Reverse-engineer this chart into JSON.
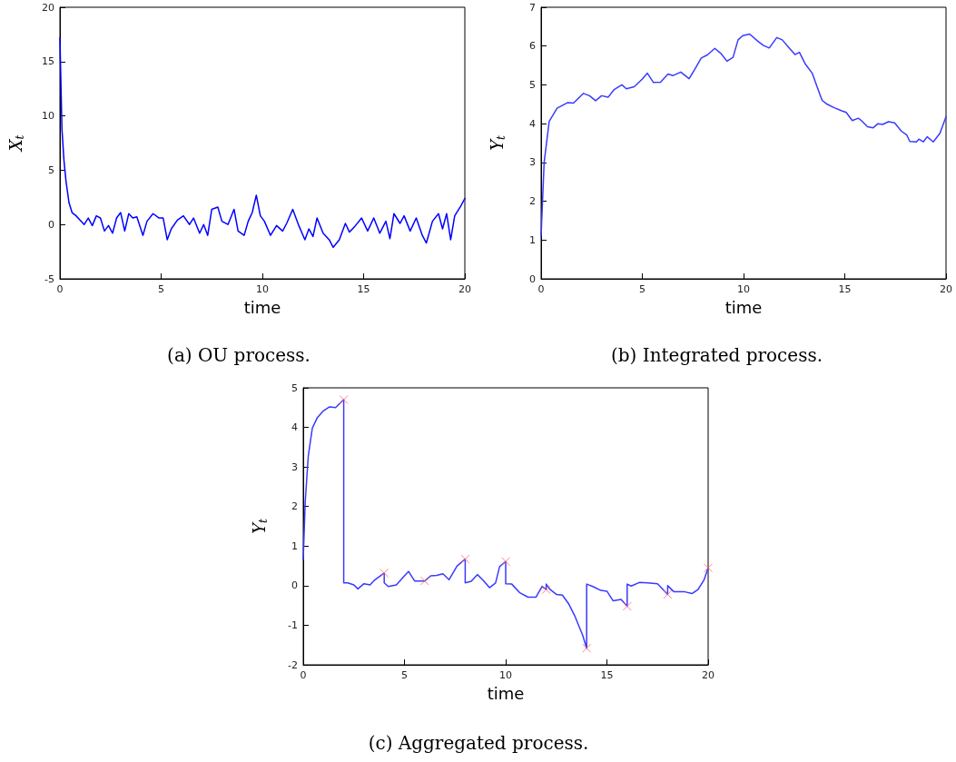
{
  "chart_data": [
    {
      "type": "line",
      "xlabel": "time",
      "ylabel": "X$_{t}$",
      "annotations": [
        "(a) OU process."
      ],
      "marker": "none",
      "xlim": [
        0,
        20
      ],
      "xticks": [
        0,
        5,
        10,
        15,
        20
      ],
      "ylim": [
        -5,
        20
      ],
      "yticks": [
        -5,
        0,
        5,
        10,
        15,
        20
      ],
      "grid": false,
      "series": [
        {
          "color": "#0000ff",
          "x": [
            0,
            0.1,
            0.2,
            0.3,
            0.45,
            0.6,
            0.8,
            1.0,
            1.2,
            1.4,
            1.6,
            1.8,
            2.0,
            2.2,
            2.4,
            2.6,
            2.8,
            3.0,
            3.2,
            3.4,
            3.6,
            3.8,
            4.1,
            4.3,
            4.6,
            4.9,
            5.1,
            5.3,
            5.5,
            5.8,
            6.1,
            6.4,
            6.6,
            6.9,
            7.1,
            7.3,
            7.5,
            7.8,
            8.0,
            8.3,
            8.6,
            8.8,
            9.1,
            9.3,
            9.5,
            9.7,
            9.9,
            10.1,
            10.4,
            10.7,
            11.0,
            11.2,
            11.5,
            11.8,
            12.1,
            12.3,
            12.5,
            12.7,
            13.0,
            13.3,
            13.5,
            13.8,
            14.1,
            14.3,
            14.6,
            14.9,
            15.2,
            15.5,
            15.8,
            16.1,
            16.3,
            16.5,
            16.8,
            17.0,
            17.3,
            17.6,
            17.9,
            18.1,
            18.4,
            18.7,
            18.9,
            19.1,
            19.3,
            19.5,
            19.8,
            20
          ],
          "values": [
            17.2,
            8.8,
            5.9,
            4.0,
            2.0,
            1.1,
            0.8,
            0.4,
            0,
            0.6,
            -0.1,
            0.8,
            0.6,
            -0.6,
            -0.1,
            -0.8,
            0.6,
            1.1,
            -0.6,
            1.0,
            0.6,
            0.7,
            -1.0,
            0.3,
            1.0,
            0.6,
            0.6,
            -1.4,
            -0.4,
            0.4,
            0.8,
            0,
            0.6,
            -0.8,
            0,
            -1.0,
            1.4,
            1.6,
            0.3,
            0,
            1.4,
            -0.6,
            -1.0,
            0.3,
            1.1,
            2.7,
            0.8,
            0.3,
            -1.0,
            -0.1,
            -0.6,
            0.1,
            1.4,
            -0.1,
            -1.4,
            -0.4,
            -1.1,
            0.6,
            -0.8,
            -1.4,
            -2.1,
            -1.4,
            0.1,
            -0.7,
            -0.1,
            0.6,
            -0.6,
            0.6,
            -0.8,
            0.3,
            -1.3,
            1.0,
            0.1,
            0.8,
            -0.6,
            0.6,
            -1.0,
            -1.7,
            0.3,
            1.0,
            -0.4,
            1.0,
            -1.4,
            0.8,
            1.7,
            2.4
          ]
        }
      ]
    },
    {
      "type": "line",
      "xlabel": "time",
      "ylabel": "Y$_{t}$",
      "annotations": [
        "(b) Integrated process."
      ],
      "marker": "none",
      "xlim": [
        0,
        20
      ],
      "xticks": [
        0,
        5,
        10,
        15,
        20
      ],
      "ylim": [
        0,
        7
      ],
      "yticks": [
        0,
        1,
        2,
        3,
        4,
        5,
        6,
        7
      ],
      "grid": false,
      "series": [
        {
          "color": "#3a3aff",
          "x": [
            0,
            0.15,
            0.4,
            0.79,
            1.3,
            1.6,
            2.09,
            2.39,
            2.69,
            2.99,
            3.31,
            3.61,
            3.99,
            4.21,
            4.6,
            5.0,
            5.25,
            5.55,
            5.9,
            6.27,
            6.52,
            6.9,
            7.31,
            7.57,
            7.91,
            8.21,
            8.58,
            8.88,
            9.18,
            9.48,
            9.73,
            9.96,
            10.3,
            10.72,
            10.97,
            11.27,
            11.64,
            11.91,
            12.27,
            12.54,
            12.76,
            13.06,
            13.39,
            13.66,
            13.88,
            14.13,
            14.48,
            14.85,
            15.07,
            15.37,
            15.67,
            15.82,
            16.12,
            16.39,
            16.64,
            16.87,
            17.16,
            17.46,
            17.79,
            18.06,
            18.21,
            18.54,
            18.66,
            18.88,
            19.07,
            19.37,
            19.7,
            20
          ],
          "values": [
            1.1,
            3.0,
            4.06,
            4.4,
            4.54,
            4.53,
            4.78,
            4.72,
            4.59,
            4.72,
            4.68,
            4.88,
            5.0,
            4.9,
            4.95,
            5.15,
            5.3,
            5.06,
            5.07,
            5.28,
            5.24,
            5.33,
            5.16,
            5.38,
            5.69,
            5.77,
            5.94,
            5.81,
            5.61,
            5.71,
            6.16,
            6.27,
            6.31,
            6.12,
            6.02,
            5.95,
            6.22,
            6.16,
            5.94,
            5.78,
            5.84,
            5.53,
            5.3,
            4.91,
            4.6,
            4.5,
            4.41,
            4.33,
            4.29,
            4.08,
            4.14,
            4.08,
            3.92,
            3.89,
            4.0,
            3.98,
            4.05,
            4.02,
            3.81,
            3.71,
            3.54,
            3.53,
            3.6,
            3.53,
            3.66,
            3.53,
            3.75,
            4.18
          ]
        }
      ]
    },
    {
      "type": "line",
      "xlabel": "time",
      "ylabel": "Y$_{t}$",
      "annotations": [
        "(c) Aggregated process."
      ],
      "marker": "none",
      "xlim": [
        0,
        20
      ],
      "xticks": [
        0,
        5,
        10,
        15,
        20
      ],
      "ylim": [
        -2,
        5
      ],
      "yticks": [
        -2,
        -1,
        0,
        1,
        2,
        3,
        4,
        5
      ],
      "grid": false,
      "series": [
        {
          "color": "#3a3aff",
          "x": [
            0,
            0.1,
            0.25,
            0.45,
            0.7,
            1.0,
            1.3,
            1.6,
            2,
            2,
            2.2,
            2.5,
            2.7,
            3.0,
            3.3,
            3.5,
            4,
            4,
            4.2,
            4.6,
            5.0,
            5.2,
            5.5,
            5.8,
            6.0,
            6.3,
            6.6,
            6.9,
            7.2,
            7.6,
            8,
            8,
            8.3,
            8.6,
            8.9,
            9.2,
            9.5,
            9.7,
            10,
            10,
            10.3,
            10.7,
            11.1,
            11.5,
            11.8,
            12,
            12,
            12.2,
            12.5,
            12.8,
            13.1,
            13.4,
            13.8,
            14,
            14,
            14.3,
            14.7,
            15.0,
            15.3,
            15.7,
            16,
            16,
            16.2,
            16.6,
            17.0,
            17.5,
            18,
            18,
            18.3,
            18.8,
            19.2,
            19.5,
            19.8,
            20
          ],
          "values": [
            0.67,
            2.13,
            3.28,
            3.98,
            4.25,
            4.42,
            4.52,
            4.5,
            4.7,
            0.07,
            0.07,
            0.02,
            -0.08,
            0.05,
            0.02,
            0.13,
            0.32,
            0.07,
            -0.02,
            0.02,
            0.25,
            0.36,
            0.12,
            0.12,
            0.12,
            0.25,
            0.26,
            0.3,
            0.15,
            0.5,
            0.67,
            0.07,
            0.11,
            0.28,
            0.13,
            -0.05,
            0.07,
            0.48,
            0.61,
            0.05,
            0.04,
            -0.18,
            -0.29,
            -0.29,
            -0.02,
            -0.1,
            0.04,
            -0.1,
            -0.22,
            -0.24,
            -0.45,
            -0.75,
            -1.25,
            -1.58,
            0.04,
            -0.02,
            -0.12,
            -0.14,
            -0.38,
            -0.35,
            -0.52,
            0.04,
            -0.01,
            0.08,
            0.07,
            0.05,
            -0.22,
            0.0,
            -0.15,
            -0.15,
            -0.2,
            -0.1,
            0.15,
            0.45
          ]
        },
        {
          "type": "scatter",
          "marker": "cross",
          "color": "#ff6666",
          "x": [
            2,
            4,
            6,
            8,
            10,
            12,
            14,
            16,
            18,
            20
          ],
          "values": [
            4.7,
            0.32,
            0.12,
            0.67,
            0.61,
            -0.1,
            -1.58,
            -0.52,
            -0.22,
            0.45
          ]
        }
      ]
    }
  ]
}
